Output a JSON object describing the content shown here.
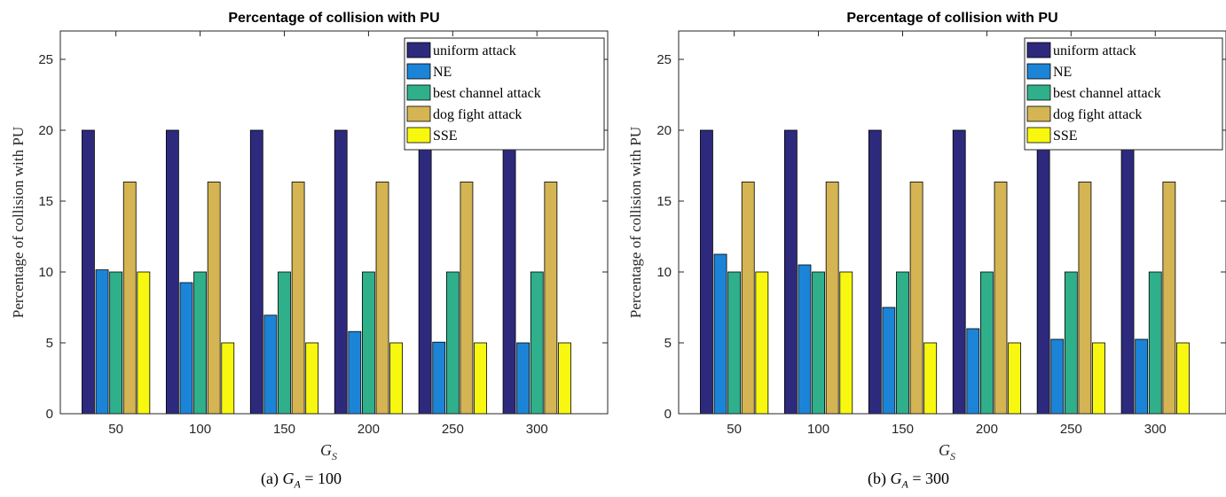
{
  "chart_data": [
    {
      "type": "bar",
      "title": "Percentage of collision with PU",
      "xlabel": "G",
      "xlabel_sub": "S",
      "ylabel": "Percentage of collision with PU",
      "ylim": [
        0,
        27
      ],
      "yticks": [
        0,
        5,
        10,
        15,
        20,
        25
      ],
      "categories": [
        "50",
        "100",
        "150",
        "200",
        "250",
        "300"
      ],
      "legend_position": "top-right",
      "grid": false,
      "series": [
        {
          "name": "uniform attack",
          "color": "#2d2a7d",
          "values": [
            20,
            20,
            20,
            20,
            20,
            20
          ]
        },
        {
          "name": "NE",
          "color": "#1c84d6",
          "values": [
            10.15,
            9.25,
            6.95,
            5.8,
            5.05,
            5.0
          ]
        },
        {
          "name": "best channel attack",
          "color": "#2fb08a",
          "values": [
            10,
            10,
            10,
            10,
            10,
            10
          ]
        },
        {
          "name": "dog fight attack",
          "color": "#d4b453",
          "values": [
            16.35,
            16.35,
            16.35,
            16.35,
            16.35,
            16.35
          ]
        },
        {
          "name": "SSE",
          "color": "#f7f70f",
          "values": [
            10,
            5,
            5,
            5,
            5,
            5
          ]
        }
      ]
    },
    {
      "type": "bar",
      "title": "Percentage of collision with PU",
      "xlabel": "G",
      "xlabel_sub": "S",
      "ylabel": "Percentage of collision with PU",
      "ylim": [
        0,
        27
      ],
      "yticks": [
        0,
        5,
        10,
        15,
        20,
        25
      ],
      "categories": [
        "50",
        "100",
        "150",
        "200",
        "250",
        "300"
      ],
      "legend_position": "top-right",
      "grid": false,
      "series": [
        {
          "name": "uniform attack",
          "color": "#2d2a7d",
          "values": [
            20,
            20,
            20,
            20,
            20,
            20
          ]
        },
        {
          "name": "NE",
          "color": "#1c84d6",
          "values": [
            11.25,
            10.5,
            7.5,
            6.0,
            5.25,
            5.25
          ]
        },
        {
          "name": "best channel attack",
          "color": "#2fb08a",
          "values": [
            10,
            10,
            10,
            10,
            10,
            10
          ]
        },
        {
          "name": "dog fight attack",
          "color": "#d4b453",
          "values": [
            16.35,
            16.35,
            16.35,
            16.35,
            16.35,
            16.35
          ]
        },
        {
          "name": "SSE",
          "color": "#f7f70f",
          "values": [
            10,
            10,
            5,
            5,
            5,
            5
          ]
        }
      ]
    }
  ],
  "captions": [
    {
      "prefix": "(a) ",
      "var": "G",
      "sub": "A",
      "rest": " = 100"
    },
    {
      "prefix": "(b) ",
      "var": "G",
      "sub": "A",
      "rest": " = 300"
    }
  ]
}
